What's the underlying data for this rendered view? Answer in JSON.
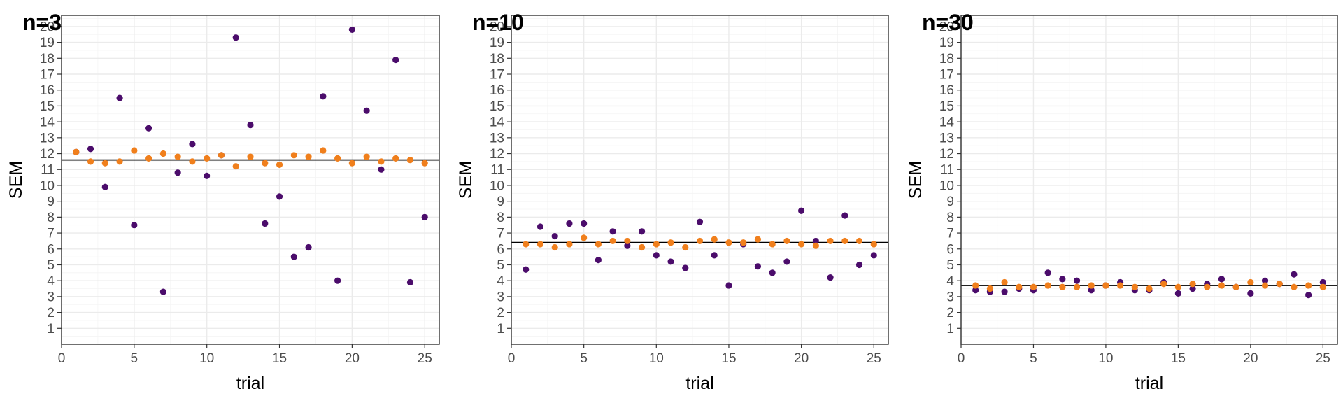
{
  "chart_data": [
    {
      "type": "scatter",
      "title": "n=3",
      "xlabel": "trial",
      "ylabel": "SEM",
      "xlim": [
        0,
        26
      ],
      "ylim": [
        0,
        20.7
      ],
      "xticks": [
        0,
        5,
        10,
        15,
        20,
        25
      ],
      "yticks": [
        1,
        2,
        3,
        4,
        5,
        6,
        7,
        8,
        9,
        10,
        11,
        12,
        13,
        14,
        15,
        16,
        17,
        18,
        19,
        20
      ],
      "hline": 11.6,
      "grid": true,
      "legend": "none",
      "series": [
        {
          "color": "#4b0c6b",
          "x": [
            1,
            2,
            3,
            4,
            5,
            6,
            7,
            8,
            9,
            10,
            11,
            12,
            13,
            14,
            15,
            16,
            17,
            18,
            19,
            20,
            21,
            22,
            23,
            24,
            25
          ],
          "y": [
            12.1,
            12.3,
            9.9,
            15.5,
            7.5,
            13.6,
            3.3,
            10.8,
            12.6,
            10.6,
            11.9,
            19.3,
            13.8,
            7.6,
            9.3,
            5.5,
            6.1,
            15.6,
            4.0,
            19.8,
            14.7,
            11.0,
            17.9,
            3.9,
            8.0
          ]
        },
        {
          "color": "#f07f1c",
          "x": [
            1,
            2,
            3,
            4,
            5,
            6,
            7,
            8,
            9,
            10,
            11,
            12,
            13,
            14,
            15,
            16,
            17,
            18,
            19,
            20,
            21,
            22,
            23,
            24,
            25
          ],
          "y": [
            12.1,
            11.5,
            11.4,
            11.5,
            12.2,
            11.7,
            12.0,
            11.8,
            11.5,
            11.7,
            11.9,
            11.2,
            11.8,
            11.4,
            11.3,
            11.9,
            11.8,
            12.2,
            11.7,
            11.4,
            11.8,
            11.5,
            11.7,
            11.6,
            11.4
          ]
        }
      ]
    },
    {
      "type": "scatter",
      "title": "n=10",
      "xlabel": "trial",
      "ylabel": "SEM",
      "xlim": [
        0,
        26
      ],
      "ylim": [
        0,
        20.7
      ],
      "xticks": [
        0,
        5,
        10,
        15,
        20,
        25
      ],
      "yticks": [
        1,
        2,
        3,
        4,
        5,
        6,
        7,
        8,
        9,
        10,
        11,
        12,
        13,
        14,
        15,
        16,
        17,
        18,
        19,
        20
      ],
      "hline": 6.4,
      "grid": true,
      "legend": "none",
      "series": [
        {
          "color": "#4b0c6b",
          "x": [
            1,
            2,
            3,
            4,
            5,
            6,
            7,
            8,
            9,
            10,
            11,
            12,
            13,
            14,
            15,
            16,
            17,
            18,
            19,
            20,
            21,
            22,
            23,
            24,
            25
          ],
          "y": [
            4.7,
            7.4,
            6.8,
            7.6,
            7.6,
            5.3,
            7.1,
            6.2,
            7.1,
            5.6,
            5.2,
            4.8,
            7.7,
            5.6,
            3.7,
            6.3,
            4.9,
            4.5,
            5.2,
            8.4,
            6.5,
            4.2,
            8.1,
            5.0,
            5.6
          ]
        },
        {
          "color": "#f07f1c",
          "x": [
            1,
            2,
            3,
            4,
            5,
            6,
            7,
            8,
            9,
            10,
            11,
            12,
            13,
            14,
            15,
            16,
            17,
            18,
            19,
            20,
            21,
            22,
            23,
            24,
            25
          ],
          "y": [
            6.3,
            6.3,
            6.1,
            6.3,
            6.7,
            6.3,
            6.5,
            6.5,
            6.1,
            6.3,
            6.4,
            6.1,
            6.5,
            6.6,
            6.4,
            6.4,
            6.6,
            6.3,
            6.5,
            6.3,
            6.2,
            6.5,
            6.5,
            6.5,
            6.3
          ]
        }
      ]
    },
    {
      "type": "scatter",
      "title": "n=30",
      "xlabel": "trial",
      "ylabel": "SEM",
      "xlim": [
        0,
        26
      ],
      "ylim": [
        0,
        20.7
      ],
      "xticks": [
        0,
        5,
        10,
        15,
        20,
        25
      ],
      "yticks": [
        1,
        2,
        3,
        4,
        5,
        6,
        7,
        8,
        9,
        10,
        11,
        12,
        13,
        14,
        15,
        16,
        17,
        18,
        19,
        20
      ],
      "hline": 3.7,
      "grid": true,
      "legend": "none",
      "series": [
        {
          "color": "#4b0c6b",
          "x": [
            1,
            2,
            3,
            4,
            5,
            6,
            7,
            8,
            9,
            10,
            11,
            12,
            13,
            14,
            15,
            16,
            17,
            18,
            19,
            20,
            21,
            22,
            23,
            24,
            25
          ],
          "y": [
            3.4,
            3.3,
            3.3,
            3.5,
            3.4,
            4.5,
            4.1,
            4.0,
            3.4,
            3.7,
            3.9,
            3.4,
            3.4,
            3.9,
            3.2,
            3.5,
            3.8,
            4.1,
            3.6,
            3.2,
            4.0,
            3.8,
            4.4,
            3.1,
            3.9
          ]
        },
        {
          "color": "#f07f1c",
          "x": [
            1,
            2,
            3,
            4,
            5,
            6,
            7,
            8,
            9,
            10,
            11,
            12,
            13,
            14,
            15,
            16,
            17,
            18,
            19,
            20,
            21,
            22,
            23,
            24,
            25
          ],
          "y": [
            3.7,
            3.5,
            3.9,
            3.6,
            3.6,
            3.7,
            3.6,
            3.6,
            3.7,
            3.7,
            3.7,
            3.6,
            3.5,
            3.8,
            3.6,
            3.8,
            3.6,
            3.7,
            3.6,
            3.9,
            3.7,
            3.8,
            3.6,
            3.7,
            3.6
          ]
        }
      ]
    }
  ]
}
